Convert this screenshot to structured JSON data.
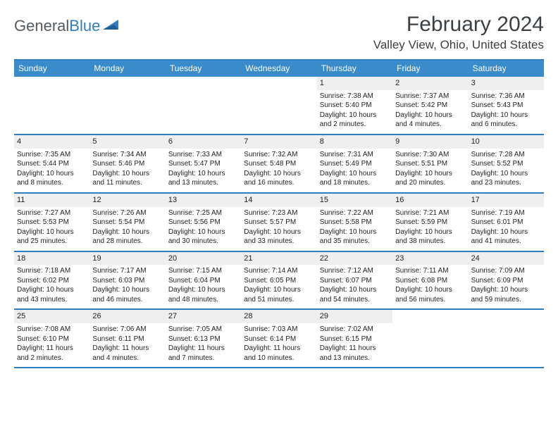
{
  "brand": {
    "part1": "General",
    "part2": "Blue"
  },
  "title": "February 2024",
  "location": "Valley View, Ohio, United States",
  "colors": {
    "header_bg": "#3a8bca",
    "border": "#2f7ec2",
    "daynum_bg": "#efefef",
    "text": "#222222",
    "title_text": "#3b4044"
  },
  "day_names": [
    "Sunday",
    "Monday",
    "Tuesday",
    "Wednesday",
    "Thursday",
    "Friday",
    "Saturday"
  ],
  "weeks": [
    [
      null,
      null,
      null,
      null,
      {
        "n": "1",
        "sr": "7:38 AM",
        "ss": "5:40 PM",
        "d1": "10 hours",
        "d2": "and 2 minutes."
      },
      {
        "n": "2",
        "sr": "7:37 AM",
        "ss": "5:42 PM",
        "d1": "10 hours",
        "d2": "and 4 minutes."
      },
      {
        "n": "3",
        "sr": "7:36 AM",
        "ss": "5:43 PM",
        "d1": "10 hours",
        "d2": "and 6 minutes."
      }
    ],
    [
      {
        "n": "4",
        "sr": "7:35 AM",
        "ss": "5:44 PM",
        "d1": "10 hours",
        "d2": "and 8 minutes."
      },
      {
        "n": "5",
        "sr": "7:34 AM",
        "ss": "5:46 PM",
        "d1": "10 hours",
        "d2": "and 11 minutes."
      },
      {
        "n": "6",
        "sr": "7:33 AM",
        "ss": "5:47 PM",
        "d1": "10 hours",
        "d2": "and 13 minutes."
      },
      {
        "n": "7",
        "sr": "7:32 AM",
        "ss": "5:48 PM",
        "d1": "10 hours",
        "d2": "and 16 minutes."
      },
      {
        "n": "8",
        "sr": "7:31 AM",
        "ss": "5:49 PM",
        "d1": "10 hours",
        "d2": "and 18 minutes."
      },
      {
        "n": "9",
        "sr": "7:30 AM",
        "ss": "5:51 PM",
        "d1": "10 hours",
        "d2": "and 20 minutes."
      },
      {
        "n": "10",
        "sr": "7:28 AM",
        "ss": "5:52 PM",
        "d1": "10 hours",
        "d2": "and 23 minutes."
      }
    ],
    [
      {
        "n": "11",
        "sr": "7:27 AM",
        "ss": "5:53 PM",
        "d1": "10 hours",
        "d2": "and 25 minutes."
      },
      {
        "n": "12",
        "sr": "7:26 AM",
        "ss": "5:54 PM",
        "d1": "10 hours",
        "d2": "and 28 minutes."
      },
      {
        "n": "13",
        "sr": "7:25 AM",
        "ss": "5:56 PM",
        "d1": "10 hours",
        "d2": "and 30 minutes."
      },
      {
        "n": "14",
        "sr": "7:23 AM",
        "ss": "5:57 PM",
        "d1": "10 hours",
        "d2": "and 33 minutes."
      },
      {
        "n": "15",
        "sr": "7:22 AM",
        "ss": "5:58 PM",
        "d1": "10 hours",
        "d2": "and 35 minutes."
      },
      {
        "n": "16",
        "sr": "7:21 AM",
        "ss": "5:59 PM",
        "d1": "10 hours",
        "d2": "and 38 minutes."
      },
      {
        "n": "17",
        "sr": "7:19 AM",
        "ss": "6:01 PM",
        "d1": "10 hours",
        "d2": "and 41 minutes."
      }
    ],
    [
      {
        "n": "18",
        "sr": "7:18 AM",
        "ss": "6:02 PM",
        "d1": "10 hours",
        "d2": "and 43 minutes."
      },
      {
        "n": "19",
        "sr": "7:17 AM",
        "ss": "6:03 PM",
        "d1": "10 hours",
        "d2": "and 46 minutes."
      },
      {
        "n": "20",
        "sr": "7:15 AM",
        "ss": "6:04 PM",
        "d1": "10 hours",
        "d2": "and 48 minutes."
      },
      {
        "n": "21",
        "sr": "7:14 AM",
        "ss": "6:05 PM",
        "d1": "10 hours",
        "d2": "and 51 minutes."
      },
      {
        "n": "22",
        "sr": "7:12 AM",
        "ss": "6:07 PM",
        "d1": "10 hours",
        "d2": "and 54 minutes."
      },
      {
        "n": "23",
        "sr": "7:11 AM",
        "ss": "6:08 PM",
        "d1": "10 hours",
        "d2": "and 56 minutes."
      },
      {
        "n": "24",
        "sr": "7:09 AM",
        "ss": "6:09 PM",
        "d1": "10 hours",
        "d2": "and 59 minutes."
      }
    ],
    [
      {
        "n": "25",
        "sr": "7:08 AM",
        "ss": "6:10 PM",
        "d1": "11 hours",
        "d2": "and 2 minutes."
      },
      {
        "n": "26",
        "sr": "7:06 AM",
        "ss": "6:11 PM",
        "d1": "11 hours",
        "d2": "and 4 minutes."
      },
      {
        "n": "27",
        "sr": "7:05 AM",
        "ss": "6:13 PM",
        "d1": "11 hours",
        "d2": "and 7 minutes."
      },
      {
        "n": "28",
        "sr": "7:03 AM",
        "ss": "6:14 PM",
        "d1": "11 hours",
        "d2": "and 10 minutes."
      },
      {
        "n": "29",
        "sr": "7:02 AM",
        "ss": "6:15 PM",
        "d1": "11 hours",
        "d2": "and 13 minutes."
      },
      null,
      null
    ]
  ],
  "labels": {
    "sunrise_prefix": "Sunrise: ",
    "sunset_prefix": "Sunset: ",
    "daylight_prefix": "Daylight: "
  }
}
